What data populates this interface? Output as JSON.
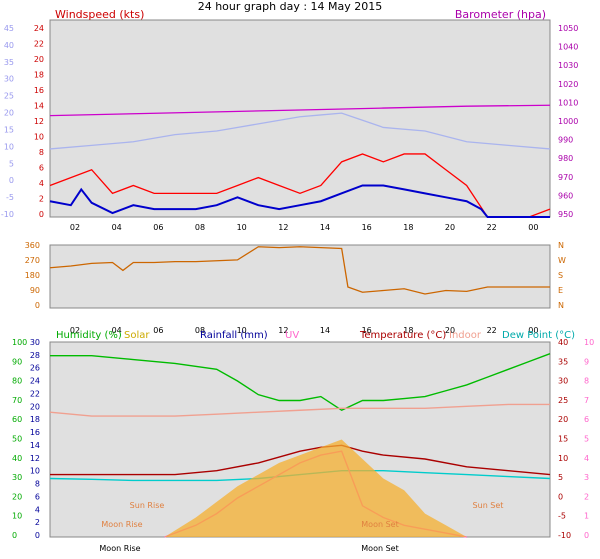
{
  "title": "24 hour graph day : 14 May 2015",
  "x_hour_labels": [
    "02",
    "04",
    "06",
    "08",
    "10",
    "12",
    "14",
    "16",
    "18",
    "20",
    "22",
    "00"
  ],
  "chart_data": [
    {
      "type": "line",
      "title": "24 hour graph day : 14 May 2015",
      "left_label": "Windspeed (kts)",
      "right_label": "Barometer (hpa)",
      "left_ticks_outer": [
        "45",
        "40",
        "35",
        "30",
        "25",
        "20",
        "15",
        "10",
        "5",
        "0",
        "-5",
        "-10"
      ],
      "left_ticks_inner": [
        "24",
        "22",
        "20",
        "18",
        "16",
        "14",
        "12",
        "10",
        "8",
        "6",
        "4",
        "2",
        "0"
      ],
      "right_ticks": [
        "1050",
        "1040",
        "1030",
        "1020",
        "1010",
        "1000",
        "990",
        "980",
        "970",
        "960",
        "950"
      ],
      "ylim_kts": [
        0,
        25
      ],
      "ylim_hpa": [
        948,
        1052
      ],
      "series": [
        {
          "name": "Barometer (hpa)",
          "color": "#cc00cc",
          "axis": "hpa",
          "x": [
            0,
            4,
            8,
            12,
            16,
            20,
            24
          ],
          "y": [
            1001.5,
            1002.5,
            1003.5,
            1004.5,
            1005.5,
            1006.5,
            1007
          ]
        },
        {
          "name": "Windspeed (kts)",
          "color": "#ff0000",
          "axis": "kts",
          "x": [
            0,
            1,
            2,
            3,
            4,
            5,
            6,
            7,
            8,
            9,
            10,
            11,
            12,
            13,
            14,
            15,
            16,
            17,
            18,
            19,
            20,
            21,
            22,
            23,
            24
          ],
          "y": [
            4,
            5,
            6,
            3,
            4,
            3,
            3,
            3,
            3,
            4,
            5,
            4,
            3,
            4,
            7,
            8,
            7,
            8,
            8,
            6,
            4,
            0,
            0,
            0,
            1
          ]
        },
        {
          "name": "Wind average",
          "color": "#0000cc",
          "axis": "kts",
          "x": [
            0,
            1,
            1.5,
            2,
            3,
            4,
            5,
            6,
            7,
            8,
            9,
            10,
            11,
            12,
            13,
            14,
            15,
            16,
            17,
            18,
            19,
            20,
            20.7,
            21,
            22,
            23,
            24
          ],
          "y": [
            2,
            1.5,
            3.5,
            1.8,
            0.5,
            1.5,
            1,
            1,
            1,
            1.5,
            2.5,
            1.5,
            1,
            1.5,
            2,
            3,
            4,
            4,
            3.5,
            3,
            2.5,
            2,
            1,
            0,
            0,
            0,
            0
          ]
        },
        {
          "name": "Outer scale",
          "color": "#aab4ee",
          "axis": "outer",
          "x": [
            0,
            2,
            4,
            6,
            8,
            10,
            12,
            13,
            14,
            15,
            16,
            18,
            20,
            22,
            24
          ],
          "y": [
            9,
            10,
            11,
            13,
            14,
            16,
            18,
            18.5,
            19,
            17,
            15,
            14,
            11,
            10,
            9
          ]
        }
      ]
    },
    {
      "type": "line",
      "series_name": "Wind direction",
      "left_ticks": [
        "360",
        "270",
        "180",
        "90",
        "0"
      ],
      "right_ticks": [
        "N",
        "W",
        "S",
        "E",
        "N"
      ],
      "ylim": [
        0,
        360
      ],
      "series": [
        {
          "color": "#cc6600",
          "x": [
            0,
            1,
            2,
            3,
            3.5,
            4,
            5,
            6,
            7,
            8,
            9,
            10,
            11,
            12,
            13,
            14,
            14.3,
            15,
            16,
            17,
            18,
            19,
            20,
            21,
            22,
            23,
            24
          ],
          "y": [
            230,
            240,
            255,
            260,
            215,
            260,
            260,
            265,
            265,
            270,
            275,
            350,
            345,
            350,
            345,
            340,
            120,
            90,
            100,
            110,
            80,
            100,
            95,
            120,
            120,
            120,
            120
          ]
        }
      ]
    },
    {
      "type": "line",
      "legend": [
        "Humidity (%)",
        "Solar",
        "Rainfall (mm)",
        "UV",
        "Temperature (°C)",
        "Indoor",
        "Dew Point (°C)"
      ],
      "humidity_ticks": [
        "100",
        "90",
        "80",
        "70",
        "60",
        "50",
        "40",
        "30",
        "20",
        "10",
        "0"
      ],
      "rain_ticks": [
        "30",
        "28",
        "26",
        "24",
        "22",
        "20",
        "18",
        "16",
        "14",
        "12",
        "10",
        "8",
        "6",
        "4",
        "2",
        "0"
      ],
      "temp_ticks": [
        "40",
        "35",
        "30",
        "25",
        "20",
        "15",
        "10",
        "5",
        "0",
        "-5",
        "-10"
      ],
      "uv_ticks": [
        "10",
        "9",
        "8",
        "7",
        "6",
        "5",
        "4",
        "3",
        "2",
        "1",
        "0"
      ],
      "annotations": [
        "Sun Rise",
        "Moon Rise",
        "Moon Set",
        "Sun Set"
      ],
      "bottom_labels": [
        "Moon Rise",
        "Moon Set"
      ],
      "ylim_humidity": [
        0,
        100
      ],
      "ylim_temp": [
        -10,
        40
      ],
      "series": [
        {
          "name": "Humidity (%)",
          "color": "#00bb00",
          "axis": "humidity",
          "x": [
            0,
            2,
            4,
            6,
            8,
            9,
            10,
            11,
            12,
            13,
            14,
            15,
            16,
            17,
            18,
            19,
            20,
            21,
            22,
            23,
            24
          ],
          "y": [
            93,
            93,
            91,
            89,
            86,
            80,
            73,
            70,
            70,
            72,
            65,
            70,
            70,
            71,
            72,
            75,
            78,
            82,
            86,
            90,
            94
          ]
        },
        {
          "name": "Indoor",
          "color": "#f0a090",
          "axis": "temp",
          "x": [
            0,
            2,
            4,
            6,
            8,
            10,
            12,
            14,
            16,
            18,
            20,
            22,
            24
          ],
          "y": [
            22,
            21,
            21,
            21,
            21.5,
            22,
            22.5,
            23,
            23,
            23,
            23.5,
            24,
            24
          ]
        },
        {
          "name": "Temperature (°C)",
          "color": "#aa0000",
          "axis": "temp",
          "x": [
            0,
            2,
            4,
            6,
            8,
            10,
            12,
            13,
            14,
            15,
            16,
            18,
            20,
            22,
            24
          ],
          "y": [
            6,
            6,
            6,
            6,
            7,
            9,
            12,
            13,
            13.5,
            12,
            11,
            10,
            8,
            7,
            6
          ]
        },
        {
          "name": "Dew Point (°C)",
          "color": "#00cccc",
          "axis": "temp",
          "x": [
            0,
            2,
            4,
            6,
            8,
            10,
            12,
            14,
            16,
            18,
            20,
            22,
            24
          ],
          "y": [
            5,
            4.8,
            4.5,
            4.5,
            4.5,
            5,
            6,
            7,
            7,
            6.5,
            6,
            5.5,
            5
          ]
        },
        {
          "name": "UV",
          "color": "#ff66cc",
          "axis": "temp",
          "x": [
            5.5,
            7,
            8,
            9,
            10,
            11,
            12,
            13,
            14,
            15,
            16,
            17,
            18,
            19,
            20
          ],
          "y": [
            -10,
            -7,
            -4,
            0,
            3,
            6,
            9,
            11,
            12,
            -2,
            -5,
            -7,
            -8,
            -9,
            -10
          ]
        },
        {
          "name": "Solar",
          "color": "#f5b030",
          "axis": "temp",
          "x": [
            5.5,
            7,
            8,
            9,
            10,
            11,
            12,
            13,
            14,
            15,
            16,
            17,
            18,
            19,
            20
          ],
          "y": [
            -10,
            -5,
            -1,
            3,
            6,
            9,
            11,
            13,
            15,
            10,
            5,
            2,
            -4,
            -7,
            -10
          ]
        }
      ]
    }
  ]
}
